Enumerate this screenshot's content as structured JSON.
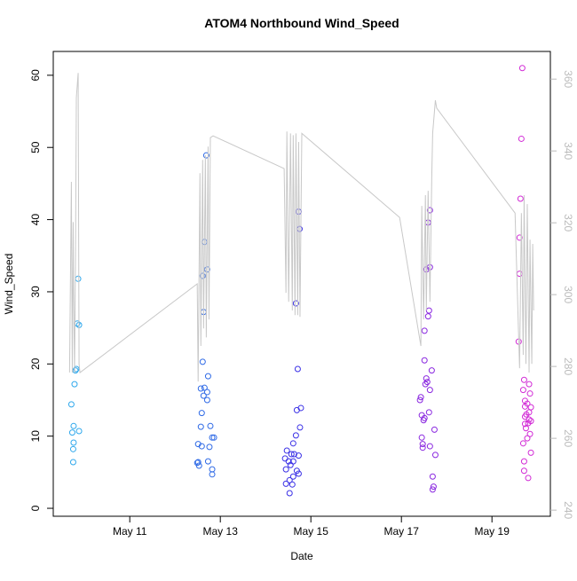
{
  "chart_data": {
    "type": "scatter",
    "title": "ATOM4 Northbound Wind_Speed",
    "x_label": "Date",
    "y_label": "Wind_Speed",
    "xlim": [
      9.31,
      20.29
    ],
    "ylim": [
      -1.1,
      63.3
    ],
    "y2lim": [
      238.3,
      367.7
    ],
    "xticks": [
      {
        "value": 11,
        "label": "May 11"
      },
      {
        "value": 13,
        "label": "May 13"
      },
      {
        "value": 15,
        "label": "May 15"
      },
      {
        "value": 17,
        "label": "May 17"
      },
      {
        "value": 19,
        "label": "May 19"
      }
    ],
    "yticks": [
      0,
      10,
      20,
      30,
      40,
      50,
      60
    ],
    "y2ticks": [
      240,
      260,
      280,
      300,
      320,
      340,
      360
    ],
    "series": [
      {
        "color": "#2fa8ec",
        "x": [
          9.71,
          9.73,
          9.75,
          9.76,
          9.75,
          9.76,
          9.78,
          9.8,
          9.82,
          9.84,
          9.86,
          9.88,
          9.88
        ],
        "values": [
          14.4,
          10.5,
          6.4,
          11.4,
          8.2,
          9.1,
          17.2,
          19.1,
          19.3,
          25.6,
          31.8,
          25.4,
          10.7
        ]
      },
      {
        "color": "#2f6ae6",
        "x": [
          12.69,
          12.65,
          12.71,
          12.61,
          12.63,
          12.61,
          12.73,
          12.57,
          12.65,
          12.71,
          12.63,
          12.71,
          12.59,
          12.57,
          12.78,
          12.82,
          12.86,
          12.51,
          12.59,
          12.76,
          12.73,
          12.51,
          12.49,
          12.53,
          12.82,
          12.82
        ],
        "values": [
          48.9,
          36.9,
          33.1,
          32.2,
          27.2,
          20.3,
          18.3,
          16.6,
          16.7,
          16.1,
          15.6,
          15.0,
          13.2,
          11.3,
          11.4,
          9.8,
          9.8,
          8.9,
          8.6,
          8.5,
          6.5,
          6.4,
          6.3,
          5.9,
          5.4,
          4.7
        ]
      },
      {
        "color": "#3a30e6",
        "x": [
          14.73,
          14.75,
          14.67,
          14.71,
          14.78,
          14.69,
          14.76,
          14.67,
          14.61,
          14.47,
          14.57,
          14.63,
          14.73,
          14.43,
          14.51,
          14.61,
          14.55,
          14.45,
          14.69,
          14.73,
          14.61,
          14.53,
          14.45,
          14.59,
          14.53
        ],
        "values": [
          41.1,
          38.7,
          28.4,
          19.3,
          13.9,
          13.6,
          11.2,
          10.1,
          9.0,
          8.0,
          7.5,
          7.5,
          7.3,
          6.9,
          6.5,
          6.5,
          6.0,
          5.4,
          5.2,
          4.8,
          4.4,
          3.9,
          3.4,
          3.3,
          2.1
        ]
      },
      {
        "color": "#8a28e0",
        "x": [
          17.63,
          17.59,
          17.63,
          17.55,
          17.61,
          17.59,
          17.51,
          17.51,
          17.67,
          17.55,
          17.57,
          17.53,
          17.63,
          17.43,
          17.41,
          17.45,
          17.51,
          17.49,
          17.61,
          17.73,
          17.45,
          17.47,
          17.63,
          17.75,
          17.47,
          17.69,
          17.71,
          17.69
        ],
        "values": [
          41.3,
          39.6,
          33.4,
          33.1,
          27.4,
          26.6,
          24.6,
          20.5,
          19.1,
          18.0,
          17.5,
          17.2,
          16.4,
          15.4,
          15.0,
          12.9,
          12.5,
          12.2,
          13.3,
          10.9,
          9.8,
          8.9,
          8.6,
          7.4,
          8.4,
          4.4,
          3.0,
          2.6
        ]
      },
      {
        "color": "#d22cd6",
        "x": [
          19.67,
          19.65,
          19.63,
          19.61,
          19.61,
          19.59,
          19.71,
          19.82,
          19.69,
          19.84,
          19.73,
          19.78,
          19.73,
          19.86,
          19.82,
          19.76,
          19.73,
          19.82,
          19.86,
          19.73,
          19.8,
          19.75,
          19.84,
          19.69,
          19.78,
          19.86,
          19.71,
          19.71,
          19.8
        ],
        "values": [
          61.0,
          51.2,
          42.9,
          37.5,
          32.5,
          23.1,
          17.8,
          17.2,
          16.4,
          15.9,
          14.9,
          14.5,
          14.1,
          14.0,
          13.3,
          13.0,
          12.7,
          12.3,
          12.1,
          11.7,
          11.8,
          11.1,
          10.3,
          9.0,
          9.7,
          7.7,
          6.5,
          5.2,
          4.2
        ]
      },
      {
        "type": "line",
        "axis": "y2",
        "color": "#c8c8c8",
        "x": [
          9.67,
          9.71,
          9.73,
          9.75,
          9.76,
          9.78,
          9.8,
          9.82,
          9.86,
          9.88,
          9.9,
          12.49,
          12.51,
          12.53,
          12.55,
          12.57,
          12.61,
          12.63,
          12.67,
          12.69,
          12.73,
          12.75,
          12.78,
          12.84,
          14.41,
          14.45,
          14.47,
          14.51,
          14.55,
          14.59,
          14.61,
          14.65,
          14.67,
          14.71,
          14.73,
          14.76,
          14.8,
          16.96,
          17.43,
          17.45,
          17.49,
          17.53,
          17.55,
          17.59,
          17.63,
          17.67,
          17.69,
          17.75,
          17.78,
          19.51,
          19.61,
          19.65,
          19.69,
          19.71,
          19.75,
          19.78,
          19.82,
          19.84,
          19.88,
          19.9,
          19.92
        ],
        "values": [
          278.3,
          331.4,
          278.3,
          320.2,
          300.5,
          278.3,
          307.9,
          354.8,
          361.7,
          280.7,
          278.3,
          303.0,
          275.8,
          305.4,
          333.8,
          285.7,
          337.5,
          290.6,
          338.8,
          288.1,
          341.2,
          293.1,
          343.7,
          344.2,
          335.1,
          300.5,
          345.4,
          298.0,
          344.9,
          295.6,
          344.4,
          294.3,
          344.9,
          294.3,
          342.5,
          293.8,
          344.9,
          321.5,
          285.7,
          324.7,
          293.1,
          327.7,
          295.6,
          328.9,
          298.0,
          332.6,
          344.9,
          354.1,
          351.9,
          322.7,
          279.5,
          322.7,
          283.2,
          327.7,
          280.7,
          325.2,
          278.3,
          315.3,
          280.7,
          314.1,
          295.6
        ]
      }
    ]
  }
}
